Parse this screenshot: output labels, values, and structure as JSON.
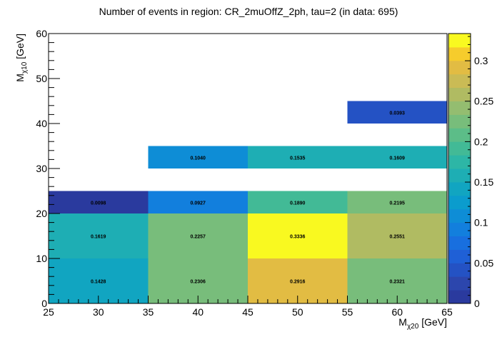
{
  "chart_data": {
    "type": "heatmap",
    "title": "Number of events in region: CR_2muOffZ_2ph, tau=2 (in data: 695)",
    "xlabel": "M_{χ20} [GeV]",
    "ylabel": "M_{χ10} [GeV]",
    "xlabel_parts": {
      "main": "M",
      "sub": "χ20",
      "unit": " [GeV]"
    },
    "ylabel_parts": {
      "main": "M",
      "sub": "χ10",
      "unit": " [GeV]"
    },
    "xlim": [
      25,
      65
    ],
    "ylim": [
      0,
      60
    ],
    "x_major_ticks": [
      "25",
      "30",
      "35",
      "40",
      "45",
      "50",
      "55",
      "60",
      "65"
    ],
    "y_major_ticks": [
      "0",
      "10",
      "20",
      "30",
      "40",
      "50",
      "60"
    ],
    "zlim": [
      0,
      0.3336
    ],
    "z_ticks": [
      "0",
      "0.05",
      "0.1",
      "0.15",
      "0.2",
      "0.25",
      "0.3"
    ],
    "colorbar_levels": 20,
    "cells": [
      {
        "x": [
          25,
          35
        ],
        "y": [
          0,
          10
        ],
        "value": 0.1428,
        "label": "0.1428"
      },
      {
        "x": [
          35,
          45
        ],
        "y": [
          0,
          10
        ],
        "value": 0.2306,
        "label": "0.2306"
      },
      {
        "x": [
          45,
          55
        ],
        "y": [
          0,
          10
        ],
        "value": 0.2916,
        "label": "0.2916"
      },
      {
        "x": [
          55,
          65
        ],
        "y": [
          0,
          10
        ],
        "value": 0.2321,
        "label": "0.2321"
      },
      {
        "x": [
          25,
          35
        ],
        "y": [
          10,
          20
        ],
        "value": 0.1619,
        "label": "0.1619"
      },
      {
        "x": [
          35,
          45
        ],
        "y": [
          10,
          20
        ],
        "value": 0.2257,
        "label": "0.2257"
      },
      {
        "x": [
          45,
          55
        ],
        "y": [
          10,
          20
        ],
        "value": 0.3336,
        "label": "0.3336"
      },
      {
        "x": [
          55,
          65
        ],
        "y": [
          10,
          20
        ],
        "value": 0.2551,
        "label": "0.2551"
      },
      {
        "x": [
          25,
          35
        ],
        "y": [
          20,
          25
        ],
        "value": 0.0098,
        "label": "0.0098"
      },
      {
        "x": [
          35,
          45
        ],
        "y": [
          20,
          25
        ],
        "value": 0.0927,
        "label": "0.0927"
      },
      {
        "x": [
          45,
          55
        ],
        "y": [
          20,
          25
        ],
        "value": 0.189,
        "label": "0.1890"
      },
      {
        "x": [
          55,
          65
        ],
        "y": [
          20,
          25
        ],
        "value": 0.2195,
        "label": "0.2195"
      },
      {
        "x": [
          35,
          45
        ],
        "y": [
          30,
          35
        ],
        "value": 0.104,
        "label": "0.1040"
      },
      {
        "x": [
          45,
          55
        ],
        "y": [
          30,
          35
        ],
        "value": 0.1535,
        "label": "0.1535"
      },
      {
        "x": [
          55,
          65
        ],
        "y": [
          30,
          35
        ],
        "value": 0.1609,
        "label": "0.1609"
      },
      {
        "x": [
          55,
          65
        ],
        "y": [
          40,
          45
        ],
        "value": 0.0393,
        "label": "0.0393"
      }
    ],
    "palette": [
      "#2a3a9e",
      "#2c46ad",
      "#2452c4",
      "#1f60d6",
      "#186fdf",
      "#127fdd",
      "#0e8dd6",
      "#0b9ccd",
      "#11a5c1",
      "#1eaeb4",
      "#2db6a6",
      "#42ba96",
      "#5cbd88",
      "#78bd7b",
      "#94bd70",
      "#b0bb62",
      "#cabb55",
      "#e2bc43",
      "#f6cc2c",
      "#f9f920"
    ]
  }
}
